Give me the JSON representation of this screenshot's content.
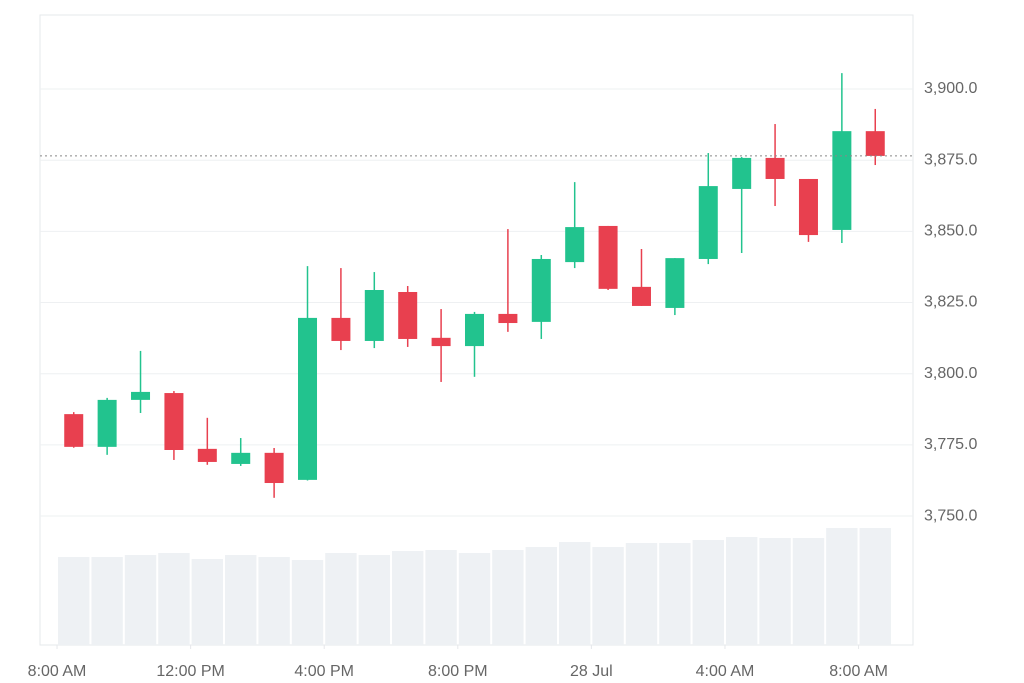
{
  "chart_data": {
    "type": "candlestick",
    "x": [
      0,
      1,
      2,
      3,
      4,
      5,
      6,
      7,
      8,
      9,
      10,
      11,
      12,
      13,
      14,
      15,
      16,
      17,
      18,
      19,
      20,
      21,
      22,
      23,
      24
    ],
    "open": [
      3785.8,
      3774.3,
      3790.8,
      3793.2,
      3773.6,
      3768.3,
      3772.2,
      3762.7,
      3819.6,
      3811.5,
      3828.7,
      3812.6,
      3809.7,
      3821.0,
      3818.2,
      3839.2,
      3851.9,
      3830.5,
      3823.1,
      3840.3,
      3864.9,
      3875.8,
      3868.4,
      3850.5,
      3885.2
    ],
    "high": [
      3786.5,
      3791.5,
      3808.0,
      3793.9,
      3784.5,
      3777.4,
      3773.9,
      3837.8,
      3837.1,
      3835.7,
      3830.8,
      3822.7,
      3821.7,
      3850.8,
      3841.7,
      3867.3,
      3851.9,
      3843.8,
      3840.6,
      3877.5,
      3876.1,
      3887.7,
      3868.4,
      3905.6,
      3893.0
    ],
    "low": [
      3774.0,
      3771.5,
      3786.2,
      3769.7,
      3768.0,
      3767.6,
      3756.4,
      3762.5,
      3808.3,
      3809.0,
      3809.4,
      3797.1,
      3798.9,
      3814.7,
      3812.2,
      3837.1,
      3829.4,
      3823.8,
      3820.6,
      3838.5,
      3842.4,
      3858.9,
      3846.3,
      3845.9,
      3873.3
    ],
    "close": [
      3774.3,
      3790.8,
      3793.6,
      3773.2,
      3769.0,
      3772.2,
      3761.6,
      3819.6,
      3811.5,
      3829.4,
      3812.2,
      3809.7,
      3821.0,
      3817.8,
      3840.3,
      3851.5,
      3829.8,
      3823.8,
      3840.6,
      3865.9,
      3875.8,
      3868.4,
      3848.7,
      3885.2,
      3876.5
    ],
    "volume": [
      88,
      88,
      90,
      92,
      86,
      90,
      88,
      85,
      92,
      90,
      94,
      95,
      92,
      95,
      98,
      103,
      98,
      102,
      102,
      105,
      108,
      107,
      107,
      117,
      117
    ],
    "up_color": "#22c38e",
    "down_color": "#e8404f",
    "volume_color": "#eef1f4",
    "xlim": [
      -0.51,
      25.63
    ],
    "xticks": [
      {
        "value": 0,
        "label": "8:00 AM"
      },
      {
        "value": 4,
        "label": "12:00 PM"
      },
      {
        "value": 8,
        "label": "4:00 PM"
      },
      {
        "value": 12,
        "label": "8:00 PM"
      },
      {
        "value": 16,
        "label": "28 Jul"
      },
      {
        "value": 20,
        "label": "4:00 AM"
      },
      {
        "value": 24,
        "label": "8:00 AM"
      }
    ],
    "ylim": [
      3704.7,
      3926.0
    ],
    "yticks": [
      {
        "value": 3750,
        "label": "3,750.0"
      },
      {
        "value": 3775,
        "label": "3,775.0"
      },
      {
        "value": 3800,
        "label": "3,800.0"
      },
      {
        "value": 3825,
        "label": "3,825.0"
      },
      {
        "value": 3850,
        "label": "3,850.0"
      },
      {
        "value": 3875,
        "label": "3,875.0"
      },
      {
        "value": 3900,
        "label": "3,900.0"
      }
    ],
    "grid": true,
    "price_line": true
  }
}
